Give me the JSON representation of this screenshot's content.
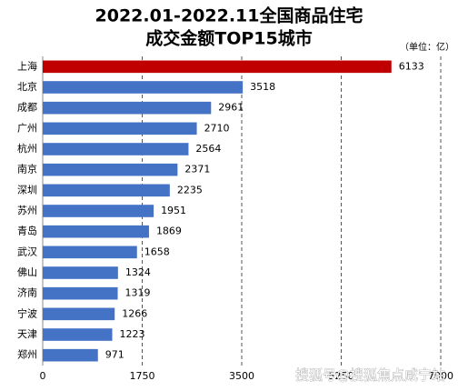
{
  "chart_data": {
    "type": "hbar",
    "title": "2022.01-2022.11全国商品住宅",
    "subtitle": "成交金额TOP15城市",
    "unit_note": "（单位：亿）",
    "categories": [
      "上海",
      "北京",
      "成都",
      "广州",
      "杭州",
      "南京",
      "深圳",
      "苏州",
      "青岛",
      "武汉",
      "佛山",
      "济南",
      "宁波",
      "天津",
      "郑州"
    ],
    "values": [
      6133,
      3518,
      2961,
      2710,
      2564,
      2371,
      2235,
      1951,
      1869,
      1658,
      1324,
      1319,
      1266,
      1223,
      971
    ],
    "colors": [
      "#c00000",
      "#4472c4",
      "#4472c4",
      "#4472c4",
      "#4472c4",
      "#4472c4",
      "#4472c4",
      "#4472c4",
      "#4472c4",
      "#4472c4",
      "#4472c4",
      "#4472c4",
      "#4472c4",
      "#4472c4",
      "#4472c4"
    ],
    "xlim": [
      0,
      7000
    ],
    "xticks": [
      0,
      1750,
      3500,
      5250,
      7000
    ],
    "grid": true,
    "watermark": "搜狐号@搜狐焦点咸宁站"
  }
}
